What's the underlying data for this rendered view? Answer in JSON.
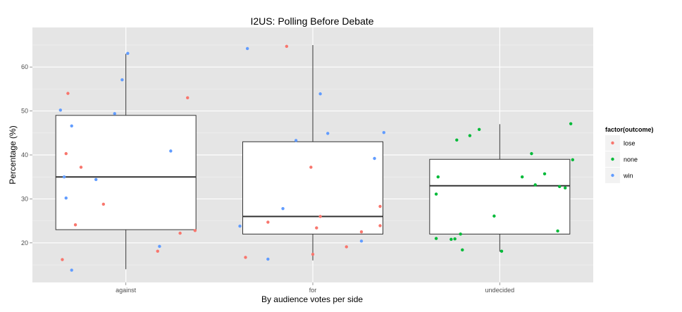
{
  "chart_data": {
    "type": "boxplot_with_jitter",
    "title": "I2US:  Polling Before Debate",
    "xlabel": "By audience votes per side",
    "ylabel": "Percentage (%)",
    "categories": [
      "against",
      "for",
      "undecided"
    ],
    "ylim": [
      11,
      69
    ],
    "yticks": [
      20,
      30,
      40,
      50,
      60
    ],
    "grid": true,
    "legend": {
      "title": "factor(outcome)",
      "placement": "right",
      "entries": [
        {
          "name": "lose",
          "color": "#f8766d"
        },
        {
          "name": "none",
          "color": "#00ba38"
        },
        {
          "name": "win",
          "color": "#619cff"
        }
      ]
    },
    "boxes": [
      {
        "category": "against",
        "q1": 23,
        "median": 35,
        "q3": 49,
        "whisker_low": 14,
        "whisker_high": 63
      },
      {
        "category": "for",
        "q1": 22,
        "median": 26,
        "q3": 43,
        "whisker_low": 16,
        "whisker_high": 65
      },
      {
        "category": "undecided",
        "q1": 22,
        "median": 33,
        "q3": 39,
        "whisker_low": 18,
        "whisker_high": 47
      }
    ],
    "points": [
      {
        "category": "against",
        "offset": -0.34,
        "y": 16.2,
        "outcome": "lose"
      },
      {
        "category": "against",
        "offset": -0.32,
        "y": 40.3,
        "outcome": "lose"
      },
      {
        "category": "against",
        "offset": -0.31,
        "y": 54.0,
        "outcome": "lose"
      },
      {
        "category": "against",
        "offset": -0.27,
        "y": 24.1,
        "outcome": "lose"
      },
      {
        "category": "against",
        "offset": -0.24,
        "y": 37.2,
        "outcome": "lose"
      },
      {
        "category": "against",
        "offset": -0.12,
        "y": 28.8,
        "outcome": "lose"
      },
      {
        "category": "against",
        "offset": 0.17,
        "y": 18.1,
        "outcome": "lose"
      },
      {
        "category": "against",
        "offset": 0.29,
        "y": 22.2,
        "outcome": "lose"
      },
      {
        "category": "against",
        "offset": 0.33,
        "y": 53.0,
        "outcome": "lose"
      },
      {
        "category": "against",
        "offset": 0.37,
        "y": 22.8,
        "outcome": "lose"
      },
      {
        "category": "against",
        "offset": -0.35,
        "y": 50.2,
        "outcome": "win"
      },
      {
        "category": "against",
        "offset": -0.33,
        "y": 35.0,
        "outcome": "win"
      },
      {
        "category": "against",
        "offset": -0.32,
        "y": 30.2,
        "outcome": "win"
      },
      {
        "category": "against",
        "offset": -0.29,
        "y": 46.6,
        "outcome": "win"
      },
      {
        "category": "against",
        "offset": -0.29,
        "y": 13.8,
        "outcome": "win"
      },
      {
        "category": "against",
        "offset": -0.16,
        "y": 34.4,
        "outcome": "win"
      },
      {
        "category": "against",
        "offset": -0.06,
        "y": 49.4,
        "outcome": "win"
      },
      {
        "category": "against",
        "offset": -0.02,
        "y": 57.1,
        "outcome": "win"
      },
      {
        "category": "against",
        "offset": 0.01,
        "y": 63.1,
        "outcome": "win"
      },
      {
        "category": "against",
        "offset": 0.18,
        "y": 19.2,
        "outcome": "win"
      },
      {
        "category": "against",
        "offset": 0.24,
        "y": 40.9,
        "outcome": "win"
      },
      {
        "category": "for",
        "offset": -0.36,
        "y": 16.7,
        "outcome": "lose"
      },
      {
        "category": "for",
        "offset": -0.24,
        "y": 24.7,
        "outcome": "lose"
      },
      {
        "category": "for",
        "offset": -0.14,
        "y": 64.7,
        "outcome": "lose"
      },
      {
        "category": "for",
        "offset": -0.01,
        "y": 37.2,
        "outcome": "lose"
      },
      {
        "category": "for",
        "offset": 0.0,
        "y": 17.4,
        "outcome": "lose"
      },
      {
        "category": "for",
        "offset": 0.02,
        "y": 23.4,
        "outcome": "lose"
      },
      {
        "category": "for",
        "offset": 0.04,
        "y": 26.0,
        "outcome": "lose"
      },
      {
        "category": "for",
        "offset": 0.18,
        "y": 19.1,
        "outcome": "lose"
      },
      {
        "category": "for",
        "offset": 0.26,
        "y": 22.5,
        "outcome": "lose"
      },
      {
        "category": "for",
        "offset": 0.36,
        "y": 23.9,
        "outcome": "lose"
      },
      {
        "category": "for",
        "offset": 0.36,
        "y": 28.3,
        "outcome": "lose"
      },
      {
        "category": "for",
        "offset": -0.39,
        "y": 23.8,
        "outcome": "win"
      },
      {
        "category": "for",
        "offset": -0.35,
        "y": 64.2,
        "outcome": "win"
      },
      {
        "category": "for",
        "offset": -0.24,
        "y": 16.3,
        "outcome": "win"
      },
      {
        "category": "for",
        "offset": -0.16,
        "y": 27.8,
        "outcome": "win"
      },
      {
        "category": "for",
        "offset": -0.09,
        "y": 43.3,
        "outcome": "win"
      },
      {
        "category": "for",
        "offset": 0.04,
        "y": 53.9,
        "outcome": "win"
      },
      {
        "category": "for",
        "offset": 0.08,
        "y": 44.9,
        "outcome": "win"
      },
      {
        "category": "for",
        "offset": 0.26,
        "y": 20.4,
        "outcome": "win"
      },
      {
        "category": "for",
        "offset": 0.33,
        "y": 39.2,
        "outcome": "win"
      },
      {
        "category": "for",
        "offset": 0.38,
        "y": 45.1,
        "outcome": "win"
      },
      {
        "category": "undecided",
        "offset": -0.34,
        "y": 31.1,
        "outcome": "none"
      },
      {
        "category": "undecided",
        "offset": -0.34,
        "y": 21.0,
        "outcome": "none"
      },
      {
        "category": "undecided",
        "offset": -0.33,
        "y": 35.0,
        "outcome": "none"
      },
      {
        "category": "undecided",
        "offset": -0.26,
        "y": 20.8,
        "outcome": "none"
      },
      {
        "category": "undecided",
        "offset": -0.24,
        "y": 20.9,
        "outcome": "none"
      },
      {
        "category": "undecided",
        "offset": -0.23,
        "y": 43.4,
        "outcome": "none"
      },
      {
        "category": "undecided",
        "offset": -0.21,
        "y": 22.0,
        "outcome": "none"
      },
      {
        "category": "undecided",
        "offset": -0.2,
        "y": 18.4,
        "outcome": "none"
      },
      {
        "category": "undecided",
        "offset": -0.16,
        "y": 44.4,
        "outcome": "none"
      },
      {
        "category": "undecided",
        "offset": -0.11,
        "y": 45.8,
        "outcome": "none"
      },
      {
        "category": "undecided",
        "offset": -0.03,
        "y": 26.1,
        "outcome": "none"
      },
      {
        "category": "undecided",
        "offset": 0.01,
        "y": 18.1,
        "outcome": "none"
      },
      {
        "category": "undecided",
        "offset": 0.12,
        "y": 35.0,
        "outcome": "none"
      },
      {
        "category": "undecided",
        "offset": 0.17,
        "y": 40.3,
        "outcome": "none"
      },
      {
        "category": "undecided",
        "offset": 0.19,
        "y": 33.2,
        "outcome": "none"
      },
      {
        "category": "undecided",
        "offset": 0.24,
        "y": 35.7,
        "outcome": "none"
      },
      {
        "category": "undecided",
        "offset": 0.31,
        "y": 22.7,
        "outcome": "none"
      },
      {
        "category": "undecided",
        "offset": 0.32,
        "y": 32.8,
        "outcome": "none"
      },
      {
        "category": "undecided",
        "offset": 0.35,
        "y": 32.5,
        "outcome": "none"
      },
      {
        "category": "undecided",
        "offset": 0.38,
        "y": 47.1,
        "outcome": "none"
      },
      {
        "category": "undecided",
        "offset": 0.39,
        "y": 38.9,
        "outcome": "none"
      }
    ]
  }
}
